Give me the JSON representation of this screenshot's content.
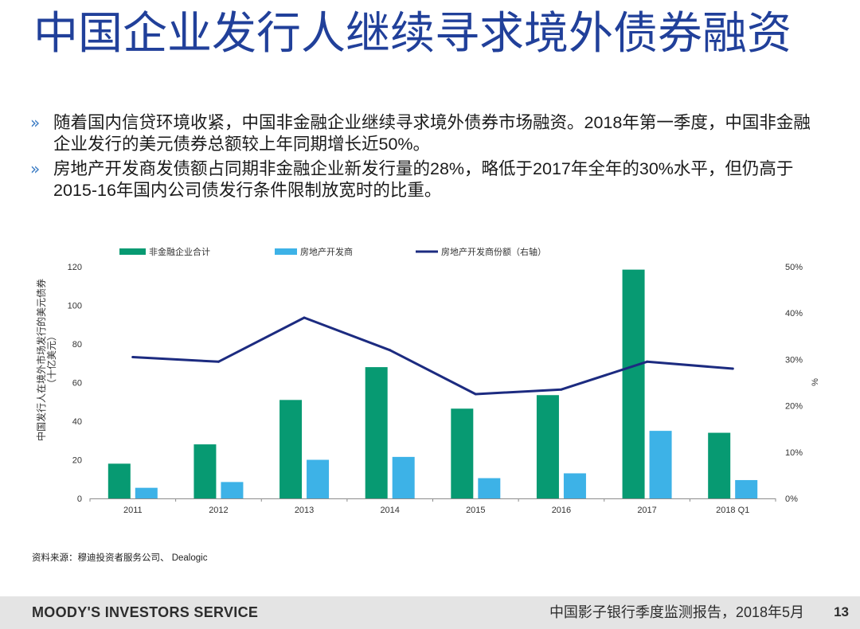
{
  "slide": {
    "title": "中国企业发行人继续寻求境外债券融资",
    "bullet_marker": "»",
    "bullets": [
      {
        "lines": [
          "随着国内信贷环境收紧，中国非金融企业继续寻求境外债券市场融资。2018年第一季度，中国非金融",
          "企业发行的美元债券总额较上年同期增长近50%。"
        ]
      },
      {
        "lines": [
          "房地产开发商发债额占同期非金融企业新发行量的28%，略低于2017年全年的30%水平，但仍高于",
          "2015-16年国内公司债发行条件限制放宽时的比重。"
        ]
      }
    ],
    "source": "资料来源：穆迪投资者服务公司、 Dealogic"
  },
  "footer": {
    "brand": "MOODY'S INVESTORS SERVICE",
    "report": "中国影子银行季度监测报告，2018年5月",
    "page": "13"
  },
  "colors": {
    "title": "#21409a",
    "bullet_marker": "#3b7cc4",
    "footer_bg": "#e4e4e4"
  },
  "chart_data": {
    "type": "bar",
    "categories": [
      "2011",
      "2012",
      "2013",
      "2014",
      "2015",
      "2016",
      "2017",
      "2018 Q1"
    ],
    "series": [
      {
        "name": "非金融企业合计",
        "type": "bar",
        "axis": "left",
        "color": "#079a72",
        "values": [
          18,
          28,
          51,
          68,
          46.5,
          53.5,
          118.5,
          34
        ]
      },
      {
        "name": "房地产开发商",
        "type": "bar",
        "axis": "left",
        "color": "#3db2e7",
        "values": [
          5.5,
          8.5,
          20,
          21.5,
          10.5,
          13,
          35,
          9.5
        ]
      },
      {
        "name": "房地产开发商份额（右轴）",
        "type": "line",
        "axis": "right",
        "color": "#1c2b80",
        "values": [
          30.5,
          29.5,
          39,
          32,
          22.5,
          23.5,
          29.5,
          28
        ]
      }
    ],
    "ylabel_lines": [
      "中国发行人在境外市场发行的美元债券",
      "（十亿美元）"
    ],
    "y2label": "%",
    "ylim": [
      0,
      120
    ],
    "ytick_labels": [
      "0",
      "20",
      "40",
      "60",
      "80",
      "100",
      "120"
    ],
    "y2lim": [
      0,
      50
    ],
    "y2tick_labels": [
      "0%",
      "10%",
      "20%",
      "30%",
      "40%",
      "50%"
    ],
    "legend": "top",
    "grid": false
  }
}
